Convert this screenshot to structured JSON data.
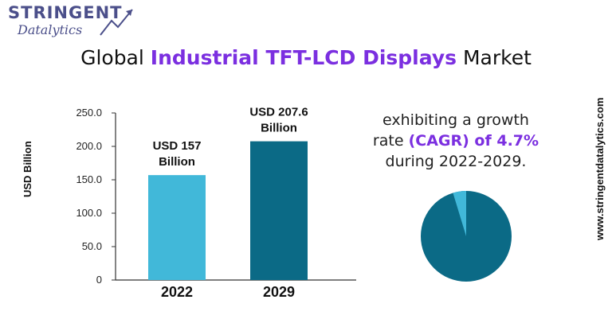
{
  "logo": {
    "line1": "STRINGENT",
    "line2": "Datalytics"
  },
  "title": {
    "prefix": "Global ",
    "highlight": "Industrial TFT-LCD Displays",
    "suffix": " Market"
  },
  "growth_text": {
    "line1": "exhibiting a growth",
    "line2_prefix": "rate ",
    "line2_highlight": "(CAGR) of 4.7%",
    "line3": "during 2022-2029."
  },
  "website": "www.stringentdatalytics.com",
  "colors": {
    "accent": "#7b2fe0",
    "bar_2022": "#41b8d9",
    "bar_2029": "#0b6a86",
    "pie_main": "#0b6a86",
    "pie_slice": "#41b8d9",
    "logo": "#4b4f8a"
  },
  "chart_data": [
    {
      "type": "bar",
      "categories": [
        "2022",
        "2029"
      ],
      "values": [
        157,
        207.6
      ],
      "data_labels": [
        [
          "USD 157",
          "Billion"
        ],
        [
          "USD 207.6",
          "Billion"
        ]
      ],
      "ylabel": "USD  Billion",
      "yticks": [
        "250.0",
        "200.0",
        "150.0",
        "100.0",
        "50.0",
        "0"
      ],
      "ytick_values": [
        250,
        200,
        150,
        100,
        50,
        0
      ],
      "ylim": [
        0,
        250
      ],
      "grid": false
    },
    {
      "type": "pie",
      "values": [
        95.3,
        4.7
      ],
      "labels": [
        "",
        "CAGR 4.7%"
      ]
    }
  ]
}
